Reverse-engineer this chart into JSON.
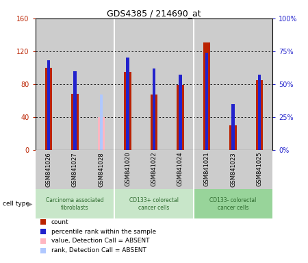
{
  "title": "GDS4385 / 214690_at",
  "samples": [
    "GSM841026",
    "GSM841027",
    "GSM841028",
    "GSM841020",
    "GSM841022",
    "GSM841024",
    "GSM841021",
    "GSM841023",
    "GSM841025"
  ],
  "count_values": [
    100,
    68,
    null,
    95,
    67,
    79,
    131,
    30,
    85
  ],
  "rank_values": [
    68,
    60,
    null,
    70,
    62,
    57,
    74,
    null,
    57
  ],
  "count_absent": [
    null,
    null,
    40,
    null,
    null,
    null,
    null,
    null,
    null
  ],
  "rank_absent": [
    null,
    null,
    42,
    null,
    null,
    null,
    null,
    null,
    null
  ],
  "absent_flags": [
    false,
    false,
    true,
    false,
    false,
    false,
    false,
    false,
    false
  ],
  "rank_absent_only": [
    false,
    false,
    false,
    false,
    false,
    false,
    false,
    true,
    false
  ],
  "rank_only_value": 35,
  "rank_only_index": 7,
  "groups": [
    {
      "label": "Carcinoma associated\nfibroblasts",
      "start": 0,
      "end": 3,
      "color": "#c8e6c9"
    },
    {
      "label": "CD133+ colorectal\ncancer cells",
      "start": 3,
      "end": 6,
      "color": "#c8e6c9"
    },
    {
      "label": "CD133- colorectal\ncancer cells",
      "start": 6,
      "end": 9,
      "color": "#98d49a"
    }
  ],
  "ylim_left": [
    0,
    160
  ],
  "ylim_right": [
    0,
    100
  ],
  "yticks_left": [
    0,
    40,
    80,
    120,
    160
  ],
  "yticks_right": [
    0,
    25,
    50,
    75,
    100
  ],
  "ytick_labels_left": [
    "0",
    "40",
    "80",
    "120",
    "160"
  ],
  "ytick_labels_right": [
    "0%",
    "25%",
    "50%",
    "75%",
    "100%"
  ],
  "count_color": "#bb2200",
  "rank_color": "#2222cc",
  "count_absent_color": "#ffb6c1",
  "rank_absent_color": "#b0c8ff",
  "count_bar_width": 0.28,
  "rank_bar_width": 0.12,
  "bg_color": "#cccccc",
  "separator_color": "#ffffff"
}
